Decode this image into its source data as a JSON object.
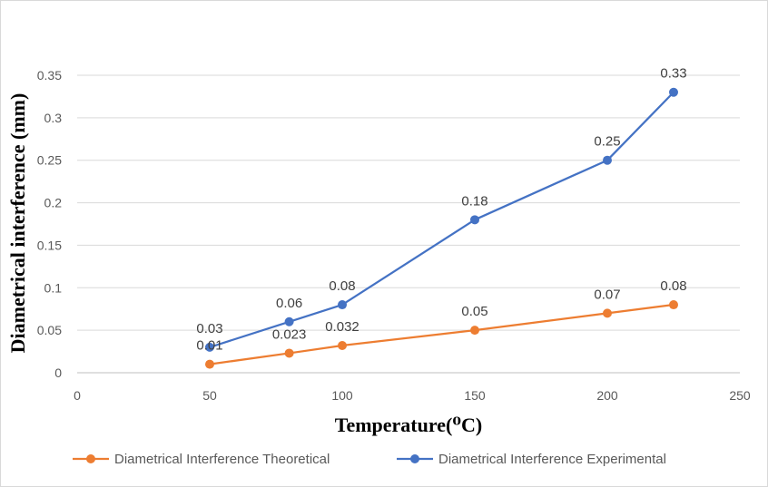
{
  "chart_data": {
    "type": "line",
    "title": "",
    "xlabel": "Temperature(⁰C)",
    "ylabel": "Diametrical interference (mm)",
    "xlim": [
      0,
      250
    ],
    "ylim": [
      0,
      0.35
    ],
    "x_ticks": [
      "0",
      "50",
      "100",
      "150",
      "200",
      "250"
    ],
    "y_ticks": [
      "0",
      "0.05",
      "0.1",
      "0.15",
      "0.2",
      "0.25",
      "0.3",
      "0.35"
    ],
    "grid": true,
    "legend_position": "bottom",
    "series": [
      {
        "name": "Diametrical Interference Theoretical",
        "color": "#ed7d31",
        "x": [
          50,
          80,
          100,
          150,
          200,
          225
        ],
        "values": [
          0.01,
          0.023,
          0.032,
          0.05,
          0.07,
          0.08
        ],
        "labels": [
          "0.01",
          "0.023",
          "0.032",
          "0.05",
          "0.07",
          "0.08"
        ]
      },
      {
        "name": "Diametrical Interference Experimental",
        "color": "#4472c4",
        "x": [
          50,
          80,
          100,
          150,
          200,
          225
        ],
        "values": [
          0.03,
          0.06,
          0.08,
          0.18,
          0.25,
          0.33
        ],
        "labels": [
          "0.03",
          "0.06",
          "0.08",
          "0.18",
          "0.25",
          "0.33"
        ]
      }
    ]
  }
}
